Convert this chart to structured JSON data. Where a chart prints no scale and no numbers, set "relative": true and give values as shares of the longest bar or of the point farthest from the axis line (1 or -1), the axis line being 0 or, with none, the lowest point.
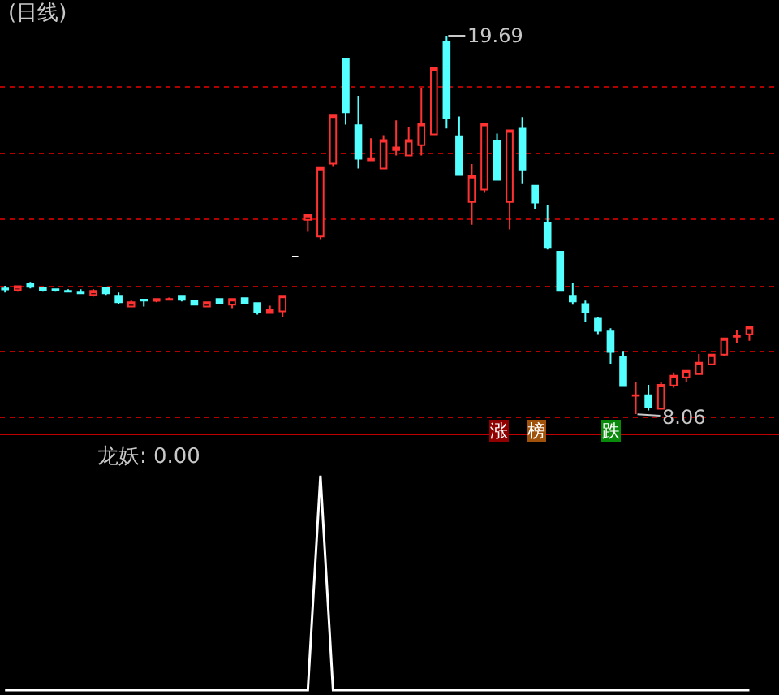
{
  "chart_data": [
    {
      "type": "candlestick",
      "title": "(日线)",
      "categories": [
        null,
        null,
        null,
        null,
        null,
        null,
        null,
        null,
        null,
        null,
        null,
        null,
        null,
        null,
        null,
        null,
        null,
        null,
        null,
        null,
        null,
        null,
        null,
        null,
        null,
        null,
        null,
        null,
        null,
        null,
        null,
        null,
        null,
        null,
        null,
        null,
        null,
        null,
        null,
        null,
        null,
        null,
        null,
        null,
        null,
        null,
        null,
        null,
        null,
        null,
        null,
        null,
        null,
        null,
        null,
        null,
        null,
        null,
        null,
        null
      ],
      "ohlc": [
        [
          11.92,
          12.0,
          11.8,
          11.89
        ],
        [
          11.87,
          12.0,
          11.82,
          11.99
        ],
        [
          12.07,
          12.12,
          11.92,
          11.97
        ],
        [
          11.95,
          11.95,
          11.82,
          11.87
        ],
        [
          11.9,
          11.9,
          11.82,
          11.87
        ],
        [
          11.85,
          11.9,
          11.82,
          11.82
        ],
        [
          11.8,
          11.9,
          11.77,
          11.77
        ],
        [
          11.72,
          11.9,
          11.67,
          11.85
        ],
        [
          11.95,
          11.95,
          11.72,
          11.77
        ],
        [
          11.7,
          11.8,
          11.45,
          11.5
        ],
        [
          11.37,
          11.55,
          11.37,
          11.5
        ],
        [
          11.58,
          11.6,
          11.37,
          11.55
        ],
        [
          11.54,
          11.62,
          11.5,
          11.6
        ],
        [
          11.57,
          11.64,
          11.57,
          11.6
        ],
        [
          11.7,
          11.7,
          11.52,
          11.57
        ],
        [
          11.55,
          11.55,
          11.42,
          11.42
        ],
        [
          11.37,
          11.5,
          11.37,
          11.5
        ],
        [
          11.6,
          11.6,
          11.47,
          11.47
        ],
        [
          11.42,
          11.6,
          11.32,
          11.6
        ],
        [
          11.62,
          11.64,
          11.44,
          11.47
        ],
        [
          11.47,
          11.5,
          11.12,
          11.2
        ],
        [
          11.17,
          11.39,
          11.17,
          11.27
        ],
        [
          11.22,
          11.7,
          11.05,
          11.7
        ],
        [
          12.9,
          12.9,
          12.9,
          12.9
        ],
        [
          14.03,
          14.18,
          13.66,
          14.18
        ],
        [
          13.52,
          15.63,
          13.44,
          15.63
        ],
        [
          15.76,
          17.24,
          15.66,
          17.24
        ],
        [
          18.99,
          18.99,
          16.96,
          17.34
        ],
        [
          16.94,
          17.84,
          15.61,
          15.91
        ],
        [
          15.86,
          16.54,
          15.86,
          15.93
        ],
        [
          15.61,
          16.63,
          15.61,
          16.48
        ],
        [
          16.18,
          17.09,
          16.01,
          16.26
        ],
        [
          16.01,
          16.89,
          16.01,
          16.48
        ],
        [
          16.33,
          18.09,
          16.01,
          16.98
        ],
        [
          16.66,
          18.69,
          16.66,
          18.69
        ],
        [
          19.49,
          19.69,
          16.84,
          17.16
        ],
        [
          16.6,
          17.21,
          15.41,
          15.41
        ],
        [
          14.58,
          15.75,
          13.88,
          15.38
        ],
        [
          14.96,
          16.98,
          14.86,
          16.98
        ],
        [
          16.45,
          16.68,
          15.26,
          15.26
        ],
        [
          14.58,
          16.78,
          13.74,
          16.78
        ],
        [
          16.83,
          17.19,
          15.13,
          15.58
        ],
        [
          15.08,
          15.08,
          14.36,
          14.56
        ],
        [
          13.95,
          14.5,
          13.12,
          13.17
        ],
        [
          13.05,
          13.05,
          11.85,
          11.85
        ],
        [
          11.7,
          12.1,
          11.42,
          11.52
        ],
        [
          11.44,
          11.55,
          10.9,
          11.2
        ],
        [
          10.99,
          11.05,
          10.52,
          10.62
        ],
        [
          10.6,
          10.7,
          9.61,
          9.97
        ],
        [
          9.81,
          10.0,
          8.92,
          8.92
        ],
        [
          8.62,
          9.06,
          8.06,
          8.64
        ],
        [
          8.64,
          8.96,
          8.17,
          8.27
        ],
        [
          8.22,
          9.06,
          8.22,
          8.96
        ],
        [
          8.94,
          9.34,
          8.87,
          9.24
        ],
        [
          9.19,
          9.39,
          9.04,
          9.39
        ],
        [
          9.29,
          9.91,
          9.29,
          9.64
        ],
        [
          9.59,
          9.89,
          9.59,
          9.89
        ],
        [
          9.89,
          10.39,
          9.84,
          10.39
        ],
        [
          10.44,
          10.65,
          10.24,
          10.46
        ],
        [
          10.51,
          10.74,
          10.31,
          10.74
        ]
      ],
      "colors": [
        "#54ffff",
        "#ff3232",
        "#54ffff",
        "#54ffff",
        "#54ffff",
        "#54ffff",
        "#54ffff",
        "#ff3232",
        "#54ffff",
        "#54ffff",
        "#ff3232",
        "#54ffff",
        "#ff3232",
        "#ff3232",
        "#54ffff",
        "#54ffff",
        "#ff3232",
        "#54ffff",
        "#ff3232",
        "#54ffff",
        "#54ffff",
        "#ff3232",
        "#ff3232",
        "#ffffff",
        "#ff3232",
        "#ff3232",
        "#ff3232",
        "#54ffff",
        "#54ffff",
        "#ff3232",
        "#ff3232",
        "#ff3232",
        "#ff3232",
        "#ff3232",
        "#ff3232",
        "#54ffff",
        "#54ffff",
        "#ff3232",
        "#ff3232",
        "#54ffff",
        "#ff3232",
        "#54ffff",
        "#54ffff",
        "#54ffff",
        "#54ffff",
        "#54ffff",
        "#54ffff",
        "#54ffff",
        "#54ffff",
        "#54ffff",
        "#ff3232",
        "#54ffff",
        "#ff3232",
        "#ff3232",
        "#ff3232",
        "#ff3232",
        "#ff3232",
        "#ff3232",
        "#ff3232",
        "#ff3232"
      ],
      "yticks": [
        {
          "value": 18.13,
          "label": null
        },
        {
          "value": 16.08,
          "label": null
        },
        {
          "value": 14.05,
          "label": null
        },
        {
          "value": 11.97,
          "label": null
        },
        {
          "value": 9.99,
          "label": null
        },
        {
          "value": 7.96,
          "label": null
        }
      ],
      "grid": "y",
      "annotations": [
        "19.69",
        "8.06",
        "涨",
        "榜",
        "跌"
      ]
    },
    {
      "type": "line",
      "title": "龙妖: 0.00",
      "categories": [
        null,
        null,
        null,
        null,
        null,
        null,
        null,
        null,
        null,
        null,
        null,
        null,
        null,
        null,
        null,
        null,
        null,
        null,
        null,
        null,
        null,
        null,
        null,
        null,
        null,
        null,
        null,
        null,
        null,
        null,
        null,
        null,
        null,
        null,
        null,
        null,
        null,
        null,
        null,
        null,
        null,
        null,
        null,
        null,
        null,
        null,
        null,
        null,
        null,
        null,
        null,
        null,
        null,
        null,
        null,
        null,
        null,
        null,
        null,
        null
      ],
      "series": [
        {
          "color": "#ffffff",
          "values": [
            0,
            0,
            0,
            0,
            0,
            0,
            0,
            0,
            0,
            0,
            0,
            0,
            0,
            0,
            0,
            0,
            0,
            0,
            0,
            0,
            0,
            0,
            0,
            0,
            0,
            1,
            0,
            0,
            0,
            0,
            0,
            0,
            0,
            0,
            0,
            0,
            0,
            0,
            0,
            0,
            0,
            0,
            0,
            0,
            0,
            0,
            0,
            0,
            0,
            0,
            0,
            0,
            0,
            0,
            0,
            0,
            0,
            0,
            0,
            0
          ]
        }
      ],
      "relative": true
    }
  ]
}
